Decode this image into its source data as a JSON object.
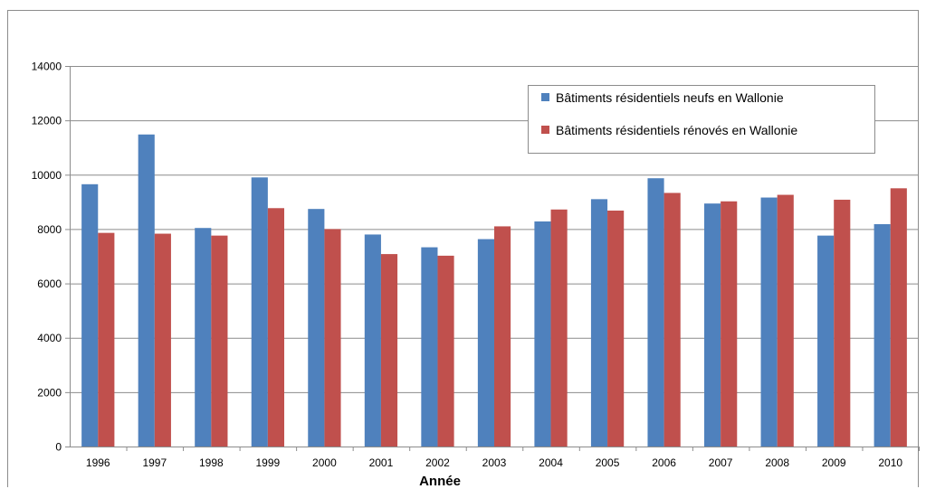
{
  "chart_data": {
    "type": "bar",
    "title": "",
    "xlabel": "Année",
    "ylabel": "",
    "ylim": [
      0,
      14000
    ],
    "yticks": [
      0,
      2000,
      4000,
      6000,
      8000,
      10000,
      12000,
      14000
    ],
    "grid": true,
    "legend_position": "top-right",
    "categories": [
      "1996",
      "1997",
      "1998",
      "1999",
      "2000",
      "2001",
      "2002",
      "2003",
      "2004",
      "2005",
      "2006",
      "2007",
      "2008",
      "2009",
      "2010"
    ],
    "series": [
      {
        "name": "Bâtiments résidentiels neufs en Wallonie",
        "color": "#4f81bd",
        "values": [
          9650,
          11480,
          8040,
          9900,
          8740,
          7800,
          7330,
          7630,
          8280,
          9100,
          9870,
          8940,
          9160,
          7760,
          8180
        ]
      },
      {
        "name": "Bâtiments résidentiels rénovés en Wallonie",
        "color": "#c0504d",
        "values": [
          7860,
          7830,
          7760,
          8770,
          8000,
          7080,
          7020,
          8100,
          8720,
          8680,
          9330,
          9020,
          9260,
          9080,
          9500
        ]
      }
    ]
  }
}
